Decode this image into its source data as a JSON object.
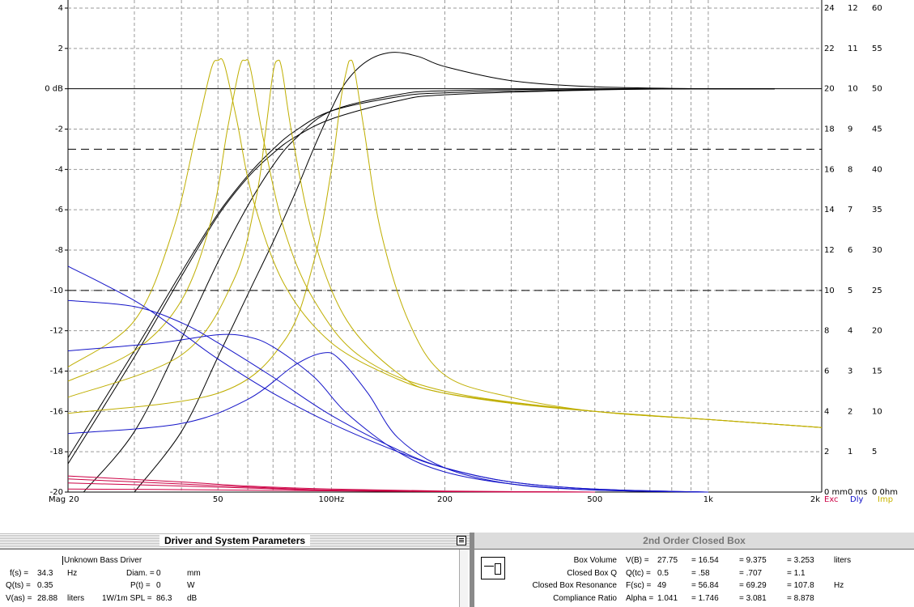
{
  "chart_data": {
    "type": "line",
    "x_scale": "log",
    "xlim": [
      20,
      2000
    ],
    "ylim": [
      -20,
      4
    ],
    "x_tick_labels": [
      {
        "label": "Mag",
        "value": null
      },
      {
        "label": "20",
        "value": 20
      },
      {
        "label": "50",
        "value": 50
      },
      {
        "label": "100Hz",
        "value": 100
      },
      {
        "label": "200",
        "value": 200
      },
      {
        "label": "500",
        "value": 500
      },
      {
        "label": "1k",
        "value": 1000
      },
      {
        "label": "2k",
        "value": 2000
      }
    ],
    "x_minor_grid": [
      30,
      40,
      60,
      70,
      80,
      90,
      300,
      400,
      600,
      700,
      800,
      900
    ],
    "y_ticks": [
      {
        "label": "4",
        "value": 4
      },
      {
        "label": "2",
        "value": 2
      },
      {
        "label": "0 dB",
        "value": 0
      },
      {
        "label": "-2",
        "value": -2
      },
      {
        "label": "-4",
        "value": -4
      },
      {
        "label": "-6",
        "value": -6
      },
      {
        "label": "-8",
        "value": -8
      },
      {
        "label": "-10",
        "value": -10
      },
      {
        "label": "-12",
        "value": -12
      },
      {
        "label": "-14",
        "value": -14
      },
      {
        "label": "-16",
        "value": -16
      },
      {
        "label": "-18",
        "value": -18
      },
      {
        "label": "-20",
        "value": -20
      }
    ],
    "right_scales": [
      {
        "name": "excursion",
        "labels": [
          "24",
          "22",
          "20",
          "18",
          "16",
          "14",
          "12",
          "10",
          "8",
          "6",
          "4",
          "2",
          "0 mm"
        ]
      },
      {
        "name": "delay",
        "labels": [
          "12",
          "11",
          "10",
          "9",
          "8",
          "7",
          "6",
          "5",
          "4",
          "3",
          "2",
          "1",
          "0 ms"
        ]
      },
      {
        "name": "impedance",
        "labels": [
          "60",
          "55",
          "50",
          "45",
          "40",
          "35",
          "30",
          "25",
          "20",
          "15",
          "10",
          "5",
          "0 0hm"
        ]
      }
    ],
    "legend": [
      {
        "label": "Exc",
        "color": "#cc0044"
      },
      {
        "label": "Dly",
        "color": "#1010c8"
      },
      {
        "label": "Imp",
        "color": "#c8b400"
      }
    ],
    "reference_lines": [
      {
        "y": -3,
        "style": "dashed"
      },
      {
        "y": -10,
        "style": "dashed"
      },
      {
        "y": 0,
        "style": "solid"
      }
    ],
    "grid": true,
    "colors": {
      "magnitude": "#000000",
      "impedance": "#bfae00",
      "delay": "#1414c8",
      "excursion": "#cc0044"
    },
    "series": [
      {
        "group": "magnitude",
        "points": [
          [
            20,
            -18.3
          ],
          [
            30,
            -13.0
          ],
          [
            40,
            -9.1
          ],
          [
            50,
            -6.2
          ],
          [
            60,
            -4.3
          ],
          [
            70,
            -3.0
          ],
          [
            80,
            -2.1
          ],
          [
            100,
            -1.1
          ],
          [
            150,
            -0.4
          ],
          [
            200,
            -0.2
          ],
          [
            500,
            -0.04
          ],
          [
            1000,
            0
          ],
          [
            1500,
            0
          ]
        ]
      },
      {
        "group": "magnitude",
        "points": [
          [
            20,
            -18.6
          ],
          [
            30,
            -13.3
          ],
          [
            40,
            -9.3
          ],
          [
            50,
            -6.3
          ],
          [
            60,
            -4.4
          ],
          [
            70,
            -3.2
          ],
          [
            80,
            -2.4
          ],
          [
            100,
            -1.5
          ],
          [
            150,
            -0.6
          ],
          [
            200,
            -0.3
          ],
          [
            500,
            -0.06
          ],
          [
            1000,
            0
          ],
          [
            1500,
            0
          ]
        ]
      },
      {
        "group": "magnitude",
        "points": [
          [
            22,
            -20
          ],
          [
            30,
            -17.0
          ],
          [
            40,
            -12.4
          ],
          [
            50,
            -8.6
          ],
          [
            60,
            -5.8
          ],
          [
            70,
            -3.8
          ],
          [
            80,
            -2.5
          ],
          [
            100,
            -1.1
          ],
          [
            150,
            -0.3
          ],
          [
            200,
            -0.1
          ],
          [
            500,
            0
          ],
          [
            1000,
            0
          ],
          [
            1500,
            0
          ]
        ]
      },
      {
        "group": "magnitude",
        "points": [
          [
            30,
            -20
          ],
          [
            40,
            -17.0
          ],
          [
            50,
            -13.3
          ],
          [
            60,
            -10.2
          ],
          [
            70,
            -7.6
          ],
          [
            80,
            -5.2
          ],
          [
            90,
            -2.9
          ],
          [
            100,
            -1.0
          ],
          [
            110,
            0.4
          ],
          [
            125,
            1.4
          ],
          [
            145,
            1.8
          ],
          [
            170,
            1.6
          ],
          [
            200,
            1.1
          ],
          [
            300,
            0.4
          ],
          [
            500,
            0.1
          ],
          [
            1000,
            0
          ],
          [
            1500,
            0
          ]
        ]
      },
      {
        "group": "impedance",
        "points": [
          [
            20,
            -13.8
          ],
          [
            30,
            -11.5
          ],
          [
            38,
            -7.0
          ],
          [
            44,
            -2.0
          ],
          [
            48,
            1.0
          ],
          [
            50,
            1.4
          ],
          [
            52,
            1.2
          ],
          [
            56,
            -1.5
          ],
          [
            62,
            -5.5
          ],
          [
            75,
            -9.7
          ],
          [
            100,
            -12.6
          ],
          [
            150,
            -14.4
          ],
          [
            200,
            -15.1
          ],
          [
            300,
            -15.6
          ],
          [
            500,
            -16.0
          ],
          [
            1000,
            -16.4
          ],
          [
            2000,
            -16.8
          ]
        ]
      },
      {
        "group": "impedance",
        "points": [
          [
            20,
            -14.5
          ],
          [
            30,
            -13.0
          ],
          [
            40,
            -10.5
          ],
          [
            48,
            -6.5
          ],
          [
            53,
            -2.0
          ],
          [
            57,
            1.0
          ],
          [
            59,
            1.4
          ],
          [
            61,
            1.0
          ],
          [
            66,
            -2.5
          ],
          [
            75,
            -7.0
          ],
          [
            90,
            -10.5
          ],
          [
            120,
            -13.3
          ],
          [
            200,
            -15.0
          ],
          [
            500,
            -16.0
          ],
          [
            1000,
            -16.4
          ],
          [
            2000,
            -16.8
          ]
        ]
      },
      {
        "group": "impedance",
        "points": [
          [
            20,
            -15.3
          ],
          [
            40,
            -13.2
          ],
          [
            55,
            -9.5
          ],
          [
            63,
            -5.5
          ],
          [
            67,
            -2.0
          ],
          [
            70,
            0.8
          ],
          [
            72,
            1.4
          ],
          [
            74,
            0.9
          ],
          [
            79,
            -2.5
          ],
          [
            90,
            -7.5
          ],
          [
            110,
            -11.5
          ],
          [
            150,
            -14.1
          ],
          [
            200,
            -15.1
          ],
          [
            500,
            -16.0
          ],
          [
            1000,
            -16.4
          ],
          [
            2000,
            -16.8
          ]
        ]
      },
      {
        "group": "impedance",
        "points": [
          [
            20,
            -16.1
          ],
          [
            50,
            -15.1
          ],
          [
            75,
            -12.5
          ],
          [
            90,
            -8.5
          ],
          [
            100,
            -4.0
          ],
          [
            106,
            -0.5
          ],
          [
            110,
            1.0
          ],
          [
            112,
            1.4
          ],
          [
            115,
            1.0
          ],
          [
            122,
            -2.0
          ],
          [
            135,
            -7.0
          ],
          [
            160,
            -11.5
          ],
          [
            200,
            -14.2
          ],
          [
            300,
            -15.3
          ],
          [
            500,
            -16.0
          ],
          [
            1000,
            -16.4
          ],
          [
            2000,
            -16.8
          ]
        ]
      },
      {
        "group": "delay",
        "points": [
          [
            20,
            -8.8
          ],
          [
            30,
            -10.5
          ],
          [
            40,
            -12.1
          ],
          [
            50,
            -13.4
          ],
          [
            70,
            -15.1
          ],
          [
            100,
            -16.6
          ],
          [
            150,
            -18.0
          ],
          [
            200,
            -18.8
          ],
          [
            300,
            -19.5
          ],
          [
            500,
            -19.85
          ],
          [
            1000,
            -20
          ]
        ]
      },
      {
        "group": "delay",
        "points": [
          [
            20,
            -10.5
          ],
          [
            30,
            -10.8
          ],
          [
            40,
            -11.6
          ],
          [
            50,
            -12.6
          ],
          [
            70,
            -14.3
          ],
          [
            100,
            -16.2
          ],
          [
            150,
            -17.9
          ],
          [
            200,
            -18.8
          ],
          [
            300,
            -19.5
          ],
          [
            500,
            -19.85
          ],
          [
            1000,
            -20
          ]
        ]
      },
      {
        "group": "delay",
        "points": [
          [
            20,
            -13.0
          ],
          [
            35,
            -12.6
          ],
          [
            50,
            -12.2
          ],
          [
            60,
            -12.3
          ],
          [
            70,
            -12.8
          ],
          [
            90,
            -14.3
          ],
          [
            110,
            -16.1
          ],
          [
            150,
            -18.0
          ],
          [
            200,
            -19.0
          ],
          [
            300,
            -19.6
          ],
          [
            500,
            -19.9
          ],
          [
            1000,
            -20
          ]
        ]
      },
      {
        "group": "delay",
        "points": [
          [
            20,
            -17.1
          ],
          [
            40,
            -16.6
          ],
          [
            60,
            -15.4
          ],
          [
            80,
            -13.7
          ],
          [
            95,
            -13.1
          ],
          [
            105,
            -13.4
          ],
          [
            125,
            -15.1
          ],
          [
            150,
            -17.3
          ],
          [
            200,
            -18.8
          ],
          [
            300,
            -19.6
          ],
          [
            500,
            -19.9
          ],
          [
            1000,
            -20
          ]
        ]
      },
      {
        "group": "excursion",
        "points": [
          [
            20,
            -19.2
          ],
          [
            40,
            -19.5
          ],
          [
            60,
            -19.7
          ],
          [
            100,
            -19.85
          ],
          [
            200,
            -19.95
          ],
          [
            500,
            -20
          ]
        ]
      },
      {
        "group": "excursion",
        "points": [
          [
            20,
            -19.35
          ],
          [
            40,
            -19.6
          ],
          [
            60,
            -19.75
          ],
          [
            100,
            -19.9
          ],
          [
            200,
            -19.97
          ],
          [
            500,
            -20
          ]
        ]
      },
      {
        "group": "excursion",
        "points": [
          [
            20,
            -19.55
          ],
          [
            40,
            -19.7
          ],
          [
            60,
            -19.8
          ],
          [
            100,
            -19.92
          ],
          [
            200,
            -19.98
          ],
          [
            500,
            -20
          ]
        ]
      },
      {
        "group": "excursion",
        "points": [
          [
            20,
            -19.85
          ],
          [
            40,
            -19.88
          ],
          [
            100,
            -19.94
          ],
          [
            200,
            -19.98
          ],
          [
            500,
            -20
          ]
        ]
      }
    ]
  },
  "left_panel": {
    "title": "Driver and System Parameters",
    "driver_name": "Unknown Bass Driver",
    "rows": [
      {
        "label": "f(s) =",
        "value": "34.3",
        "unit": "Hz",
        "label2": "Diam. =",
        "value2": "0",
        "unit2": "mm"
      },
      {
        "label": "Q(ts) =",
        "value": "0.35",
        "unit": "",
        "label2": "P(t) =",
        "value2": "0",
        "unit2": "W"
      },
      {
        "label": "V(as) =",
        "value": "28.88",
        "unit": "liters",
        "label2": "1W/1m SPL =",
        "value2": "86.3",
        "unit2": "dB"
      }
    ]
  },
  "right_panel": {
    "title": "2nd Order Closed Box",
    "rows": [
      {
        "label": "Box Volume",
        "sym": "V(B) =",
        "v1": "27.75",
        "v2": "= 16.54",
        "v3": "= 9.375",
        "v4": "= 3.253",
        "unit": "liters"
      },
      {
        "label": "Closed Box Q",
        "sym": "Q(tc) =",
        "v1": "0.5",
        "v2": "= .58",
        "v3": "= .707",
        "v4": "= 1.1",
        "unit": ""
      },
      {
        "label": "Closed Box Resonance",
        "sym": "F(sc) =",
        "v1": "49",
        "v2": "= 56.84",
        "v3": "= 69.29",
        "v4": "= 107.8",
        "unit": "Hz"
      },
      {
        "label": "Compliance Ratio",
        "sym": "Alpha =",
        "v1": "1.041",
        "v2": "= 1.746",
        "v3": "= 3.081",
        "v4": "= 8.878",
        "unit": ""
      }
    ]
  }
}
